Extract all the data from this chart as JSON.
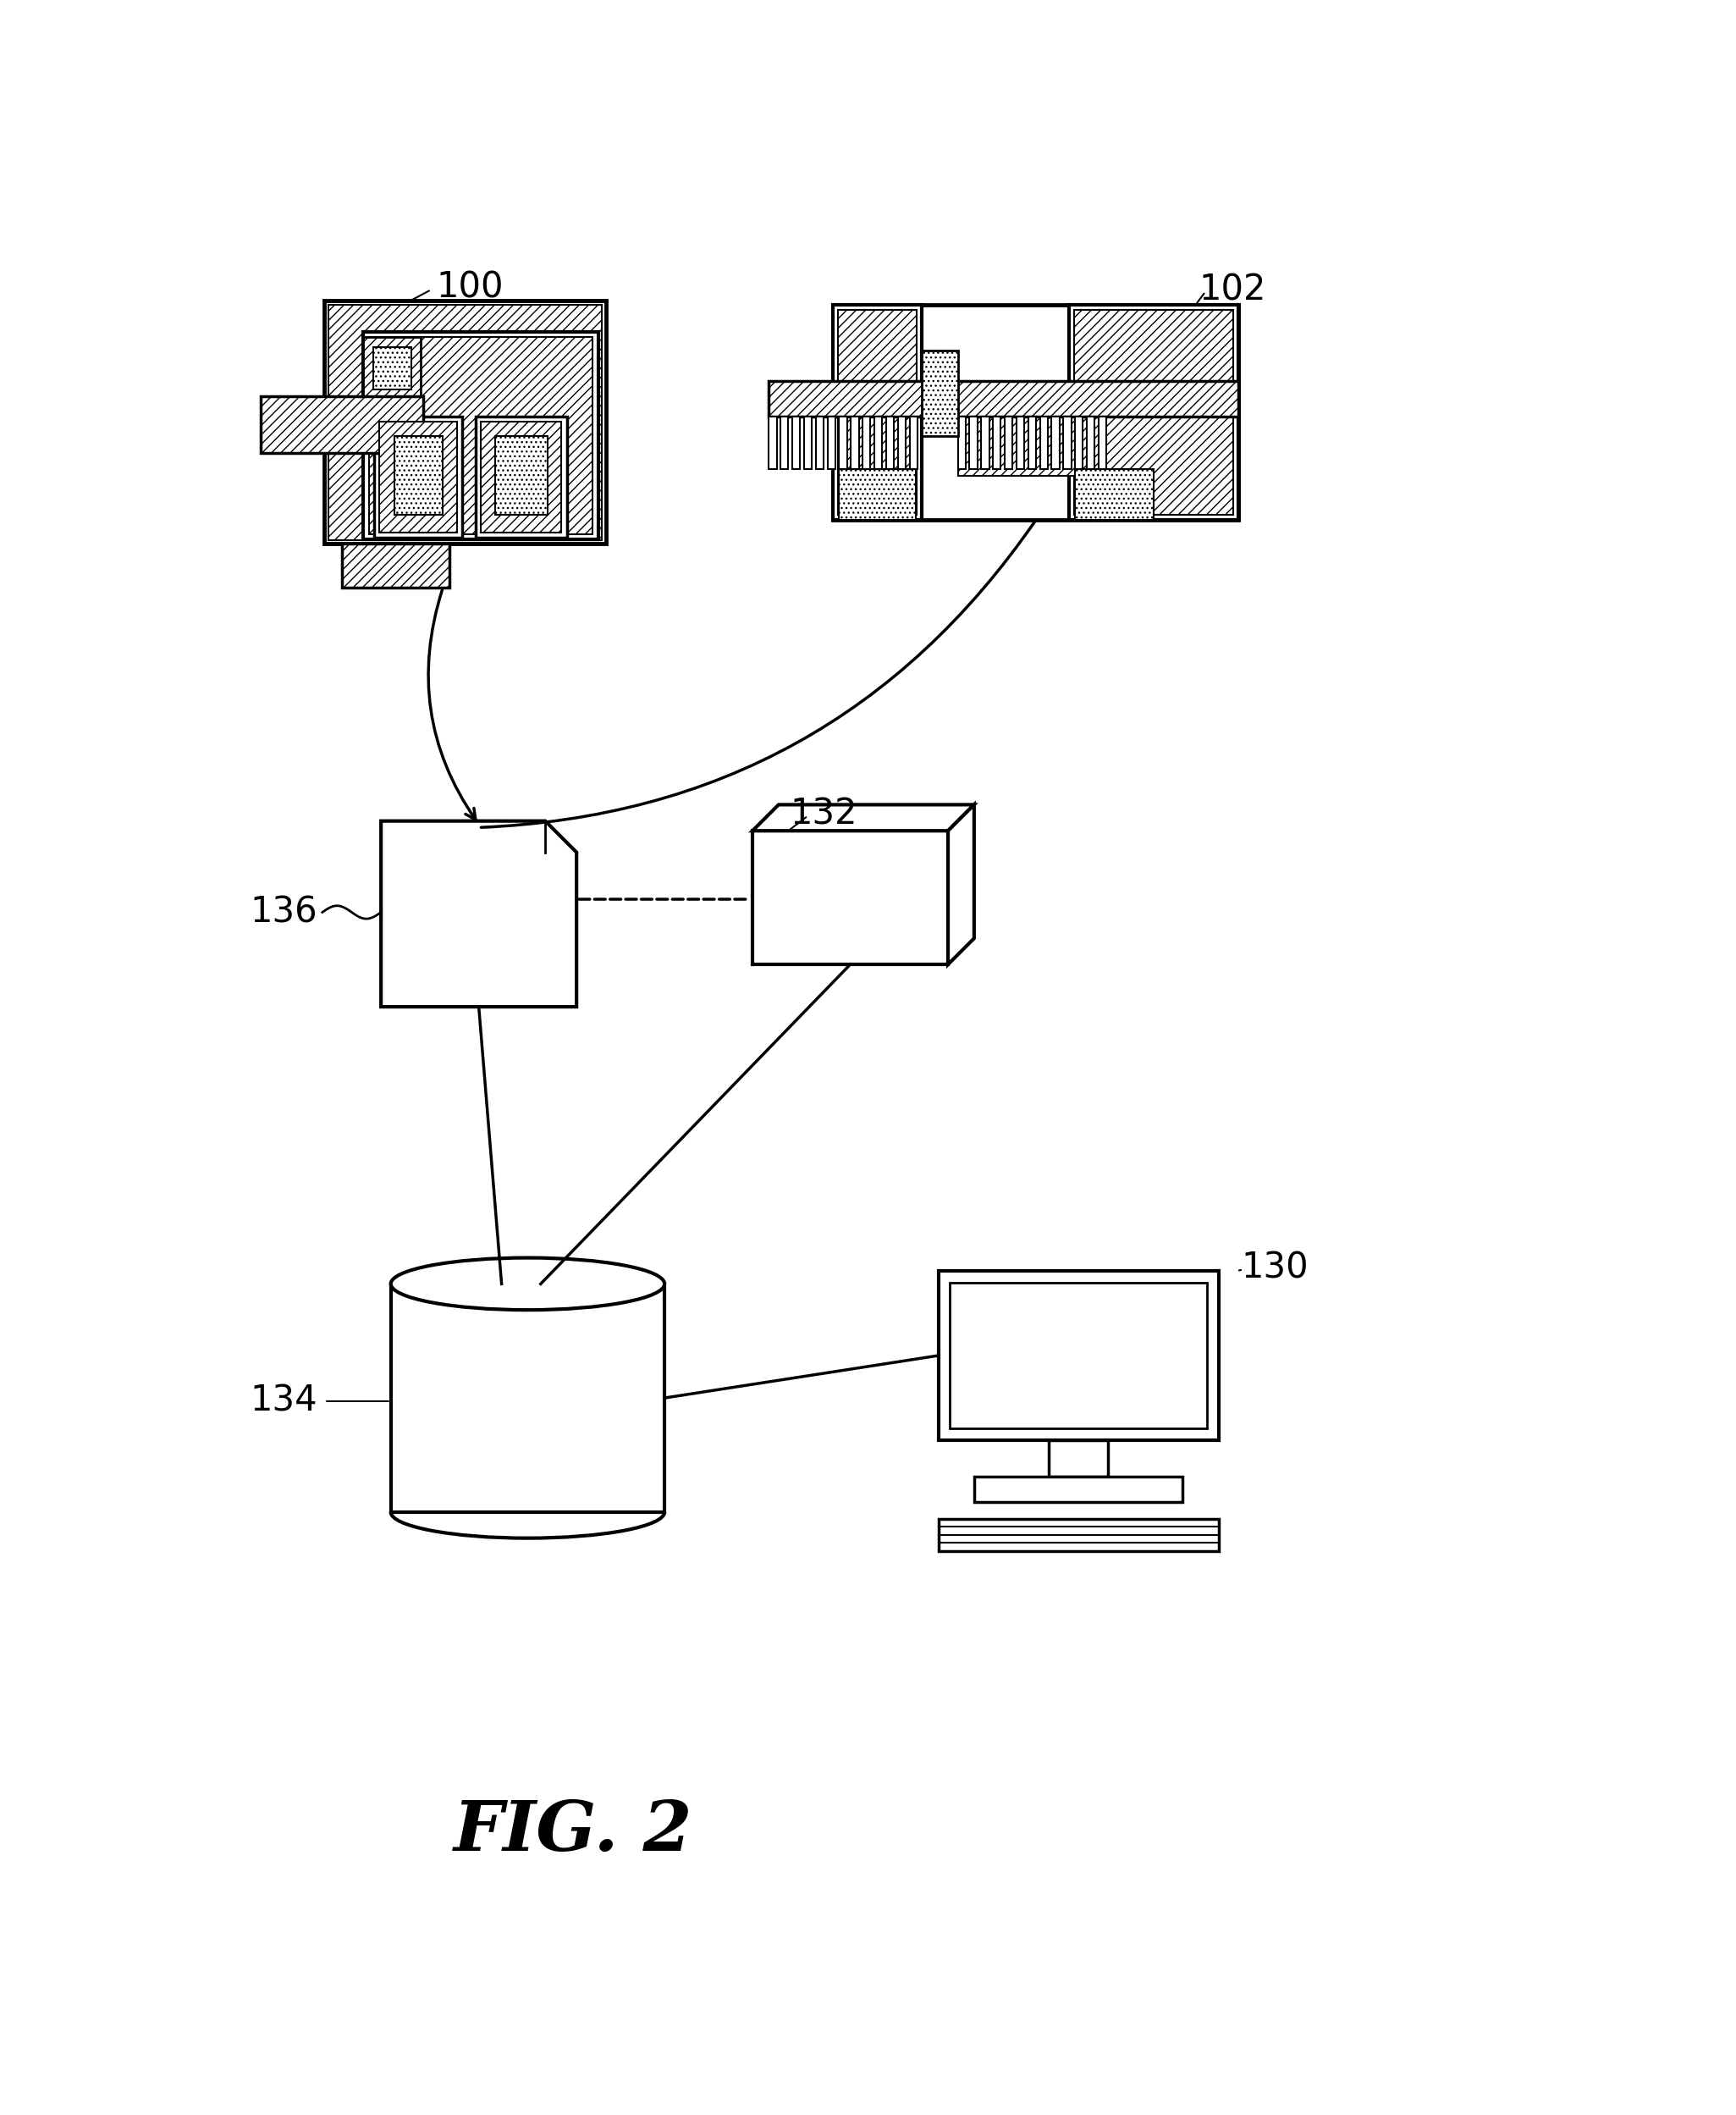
{
  "fig_label": "FIG. 2",
  "bg_color": "#ffffff",
  "line_color": "#000000",
  "label_100": "100",
  "label_102": "102",
  "label_130": "130",
  "label_132": "132",
  "label_134": "134",
  "label_136": "136"
}
